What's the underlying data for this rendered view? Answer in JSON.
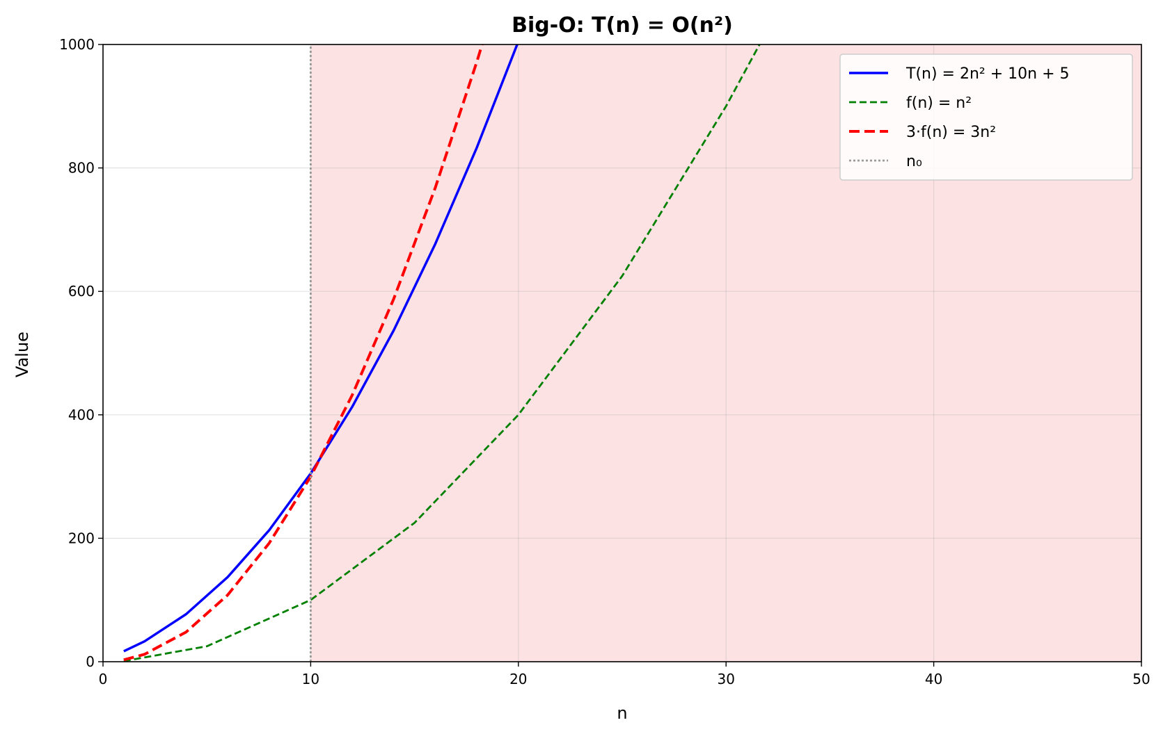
{
  "chart_data": {
    "type": "line",
    "title": "Big-O: T(n) = O(n²)",
    "xlabel": "n",
    "ylabel": "Value",
    "xlim": [
      0,
      50
    ],
    "ylim": [
      0,
      1000
    ],
    "xticks": [
      0,
      10,
      20,
      30,
      40,
      50
    ],
    "yticks": [
      0,
      200,
      400,
      600,
      800,
      1000
    ],
    "grid": true,
    "legend_position": "top-right",
    "shaded_region": {
      "x_from": 10,
      "x_to": 50,
      "color": "#fde2e4"
    },
    "series": [
      {
        "name": "T(n) = 2n² + 10n + 5",
        "color": "#0000ff",
        "style": "solid",
        "x": [
          1,
          2,
          4,
          6,
          8,
          10,
          12,
          14,
          16,
          18,
          20
        ],
        "y": [
          17,
          33,
          77,
          137,
          213,
          305,
          413,
          537,
          677,
          833,
          1005
        ]
      },
      {
        "name": "f(n) = n²",
        "color": "#008000",
        "style": "dashed",
        "x": [
          1,
          5,
          10,
          15,
          20,
          25,
          30,
          32
        ],
        "y": [
          1,
          25,
          100,
          225,
          400,
          625,
          900,
          1024
        ]
      },
      {
        "name": "3·f(n) = 3n²",
        "color": "#ff0000",
        "style": "dashed-thick",
        "x": [
          1,
          2,
          4,
          6,
          8,
          10,
          12,
          14,
          16,
          18,
          18.3
        ],
        "y": [
          3,
          12,
          48,
          108,
          192,
          300,
          432,
          588,
          768,
          972,
          1005
        ]
      },
      {
        "name": "n₀",
        "color": "#999999",
        "style": "dotted",
        "x": [
          10,
          10
        ],
        "y": [
          0,
          1000
        ]
      }
    ]
  }
}
